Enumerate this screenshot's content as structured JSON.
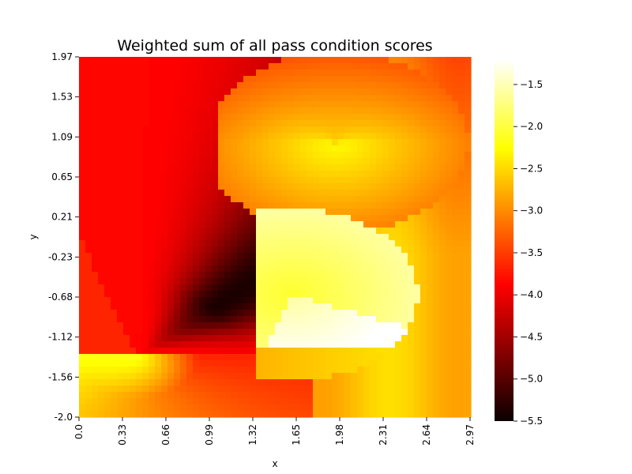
{
  "chart_data": {
    "type": "heatmap",
    "title": "Weighted sum of all pass condition scores",
    "xlabel": "x",
    "ylabel": "y",
    "x_tick_labels": [
      "0.0",
      "0.33",
      "0.66",
      "0.99",
      "1.32",
      "1.65",
      "1.98",
      "2.31",
      "2.64",
      "2.97"
    ],
    "y_tick_labels": [
      "1.97",
      "1.53",
      "1.09",
      "0.65",
      "0.21",
      "-0.23",
      "-0.68",
      "-1.12",
      "-1.56",
      "-2.0"
    ],
    "xlim": [
      0.0,
      2.97
    ],
    "ylim": [
      -2.0,
      1.97
    ],
    "colormap": "hot",
    "colorbar": {
      "range": [
        -5.5,
        -1.2
      ],
      "tick_labels": [
        "−1.5",
        "−2.0",
        "−2.5",
        "−3.0",
        "−3.5",
        "−4.0",
        "−4.5",
        "−5.0",
        "−5.5"
      ],
      "tick_values": [
        -1.5,
        -2.0,
        -2.5,
        -3.0,
        -3.5,
        -4.0,
        -4.5,
        -5.0,
        -5.5
      ]
    },
    "features": {
      "focal_point": {
        "x": 0.45,
        "y": -1.33
      },
      "lower_disc": {
        "cx": 1.62,
        "cy": -0.65,
        "r": 0.95
      },
      "upper_disc": {
        "cx": 1.95,
        "cy": 1.02,
        "r": 1.0
      }
    },
    "grid": false
  }
}
